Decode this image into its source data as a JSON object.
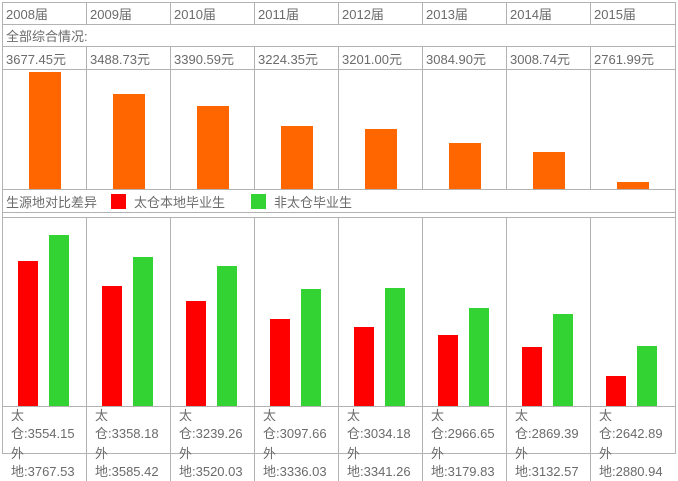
{
  "years": [
    "2008届",
    "2009届",
    "2010届",
    "2011届",
    "2012届",
    "2013届",
    "2014届",
    "2015届"
  ],
  "overall_section_label": "全部综合情况:",
  "overall_values_text": [
    "3677.45元",
    "3488.73元",
    "3390.59元",
    "3224.35元",
    "3201.00元",
    "3084.90元",
    "3008.74元",
    "2761.99元"
  ],
  "compare_section_label": "生源地对比差异",
  "legend": {
    "local_label": "太仓本地毕业生",
    "nonlocal_label": "非太仓毕业生",
    "local_color": "#fe0000",
    "nonlocal_color": "#33d333"
  },
  "bottom_values_text": [
    {
      "local": "太仓:3554.15",
      "nonlocal": "外地:3767.53"
    },
    {
      "local": "太仓:3358.18",
      "nonlocal": "外地:3585.42"
    },
    {
      "local": "太仓:3239.26",
      "nonlocal": "外地:3520.03"
    },
    {
      "local": "太仓:3097.66",
      "nonlocal": "外地:3336.03"
    },
    {
      "local": "太仓:3034.18",
      "nonlocal": "外地:3341.26"
    },
    {
      "local": "太仓:2966.65",
      "nonlocal": "外地:3179.83"
    },
    {
      "local": "太仓:2869.39",
      "nonlocal": "外地:3132.57"
    },
    {
      "local": "太仓:2642.89",
      "nonlocal": "外地:2880.94"
    }
  ],
  "colors": {
    "overall_bar": "#ff6600",
    "local_bar": "#fe0000",
    "nonlocal_bar": "#33d333",
    "border": "#b2b2b2",
    "text": "#6b6b6b"
  },
  "chart_data": [
    {
      "type": "bar",
      "title": "全部综合情况",
      "categories": [
        "2008届",
        "2009届",
        "2010届",
        "2011届",
        "2012届",
        "2013届",
        "2014届",
        "2015届"
      ],
      "values": [
        3677.45,
        3488.73,
        3390.59,
        3224.35,
        3201.0,
        3084.9,
        3008.74,
        2761.99
      ],
      "unit": "元",
      "ylim": [
        2700,
        3690
      ],
      "color": "#ff6600",
      "grid": false,
      "legend_position": "none"
    },
    {
      "type": "bar",
      "title": "生源地对比差异",
      "categories": [
        "2008届",
        "2009届",
        "2010届",
        "2011届",
        "2012届",
        "2013届",
        "2014届",
        "2015届"
      ],
      "series": [
        {
          "name": "太仓本地毕业生",
          "color": "#fe0000",
          "values": [
            3554.15,
            3358.18,
            3239.26,
            3097.66,
            3034.18,
            2966.65,
            2869.39,
            2642.89
          ]
        },
        {
          "name": "非太仓毕业生",
          "color": "#33d333",
          "values": [
            3767.53,
            3585.42,
            3520.03,
            3336.03,
            3341.26,
            3179.83,
            3132.57,
            2880.94
          ]
        }
      ],
      "ylim": [
        2400,
        3900
      ],
      "grid": false,
      "legend_position": "top-row"
    }
  ]
}
